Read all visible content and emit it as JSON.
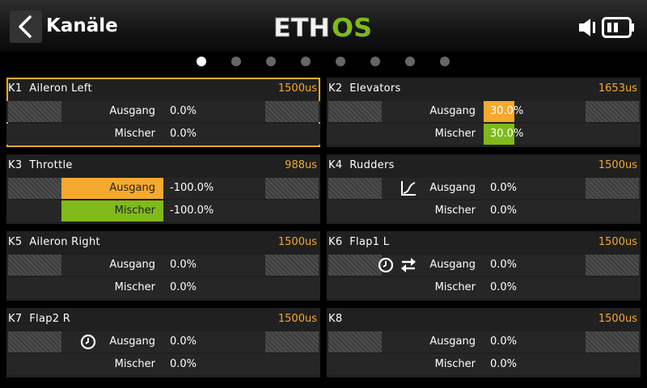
{
  "header": {
    "title": "Kanäle",
    "logo_part1": "ETH",
    "logo_part2": "OS",
    "logo_color_white": "#f2f2f2",
    "logo_color_green": "#7fba1a"
  },
  "pager": {
    "count": 8,
    "active_index": 0
  },
  "colors": {
    "accent": "#f5a92e",
    "green": "#7fba1a",
    "panel": "#202020"
  },
  "channels": [
    {
      "id": "K1",
      "name": "Aileron Left",
      "us": "1500us",
      "output_label": "Ausgang",
      "output_value": "0.0%",
      "mixer_label": "Mischer",
      "mixer_value": "0.0%",
      "selected": true
    },
    {
      "id": "K2",
      "name": "Elevators",
      "us": "1653us",
      "output_label": "Ausgang",
      "output_value": "30.0%",
      "mixer_label": "Mischer",
      "mixer_value": "30.0%",
      "output_level_percent": 30,
      "mixer_level_percent": 30
    },
    {
      "id": "K3",
      "name": "Throttle",
      "us": "988us",
      "output_label": "Ausgang",
      "output_value": "-100.0%",
      "mixer_label": "Mischer",
      "mixer_value": "-100.0%",
      "output_level_percent": -100,
      "mixer_level_percent": -100
    },
    {
      "id": "K4",
      "name": "Rudders",
      "us": "1500us",
      "output_label": "Ausgang",
      "output_value": "0.0%",
      "mixer_label": "Mischer",
      "mixer_value": "0.0%",
      "icons": [
        "curve-icon"
      ]
    },
    {
      "id": "K5",
      "name": "Aileron Right",
      "us": "1500us",
      "output_label": "Ausgang",
      "output_value": "0.0%",
      "mixer_label": "Mischer",
      "mixer_value": "0.0%"
    },
    {
      "id": "K6",
      "name": "Flap1 L",
      "us": "1500us",
      "output_label": "Ausgang",
      "output_value": "0.0%",
      "mixer_label": "Mischer",
      "mixer_value": "0.0%",
      "icons": [
        "clock-icon",
        "reverse-icon"
      ]
    },
    {
      "id": "K7",
      "name": "Flap2 R",
      "us": "1500us",
      "output_label": "Ausgang",
      "output_value": "0.0%",
      "mixer_label": "Mischer",
      "mixer_value": "0.0%",
      "icons": [
        "clock-icon"
      ]
    },
    {
      "id": "K8",
      "name": "",
      "us": "1500us",
      "output_label": "Ausgang",
      "output_value": "0.0%",
      "mixer_label": "Mischer",
      "mixer_value": "0.0%"
    }
  ]
}
